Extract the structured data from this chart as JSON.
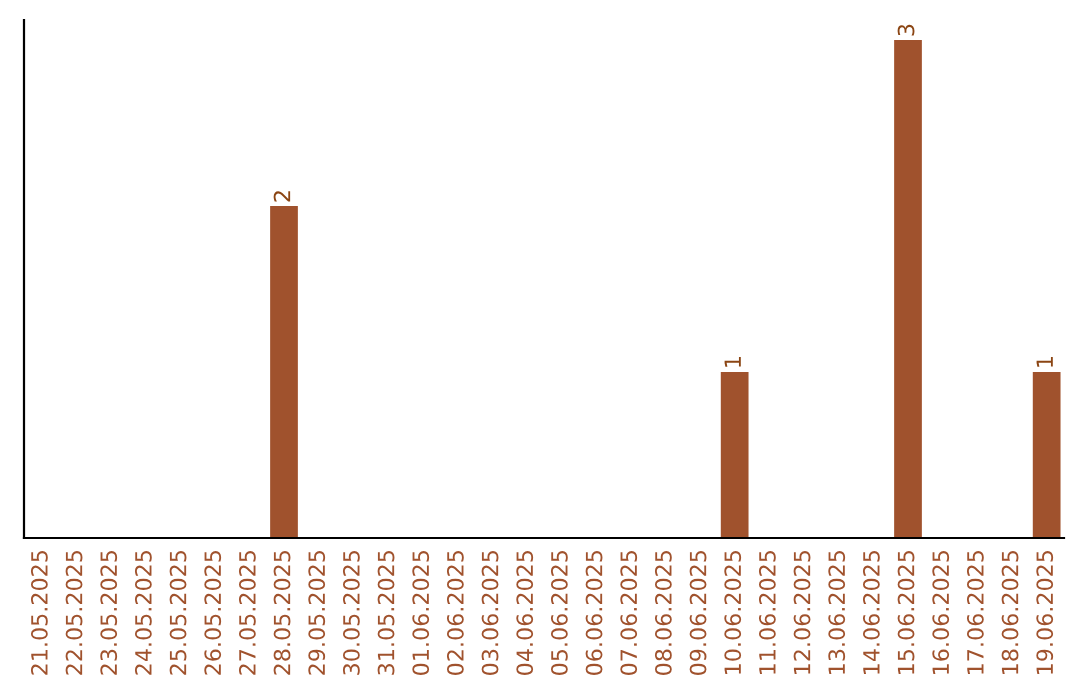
{
  "chart_data": {
    "type": "bar",
    "categories": [
      "21.05.2025",
      "22.05.2025",
      "23.05.2025",
      "24.05.2025",
      "25.05.2025",
      "26.05.2025",
      "27.05.2025",
      "28.05.2025",
      "29.05.2025",
      "30.05.2025",
      "31.05.2025",
      "01.06.2025",
      "02.06.2025",
      "03.06.2025",
      "04.06.2025",
      "05.06.2025",
      "06.06.2025",
      "07.06.2025",
      "08.06.2025",
      "09.06.2025",
      "10.06.2025",
      "11.06.2025",
      "12.06.2025",
      "13.06.2025",
      "14.06.2025",
      "15.06.2025",
      "16.06.2025",
      "17.06.2025",
      "18.06.2025",
      "19.06.2025"
    ],
    "values": [
      0,
      0,
      0,
      0,
      0,
      0,
      0,
      2,
      0,
      0,
      0,
      0,
      0,
      0,
      0,
      0,
      0,
      0,
      0,
      0,
      1,
      0,
      0,
      0,
      0,
      3,
      0,
      0,
      0,
      1
    ],
    "value_labels": [
      null,
      null,
      null,
      null,
      null,
      null,
      null,
      "2",
      null,
      null,
      null,
      null,
      null,
      null,
      null,
      null,
      null,
      null,
      null,
      null,
      "1",
      null,
      null,
      null,
      null,
      "3",
      null,
      null,
      null,
      "1"
    ],
    "color": "#a0522d",
    "ylim": [
      0,
      3.12
    ],
    "tick_labels": "x",
    "grid": false,
    "legend": false
  }
}
